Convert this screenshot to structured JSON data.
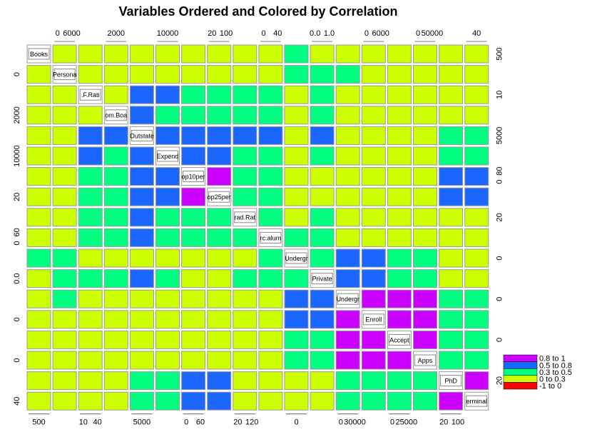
{
  "chart_data": {
    "type": "scatter-matrix",
    "title": "Variables Ordered and Colored by Correlation",
    "variables": [
      {
        "label": "Books",
        "col_ticks": [
          500
        ],
        "row_ticks": [
          500
        ]
      },
      {
        "label": "Persona",
        "col_ticks": [
          0,
          6000
        ],
        "row_ticks": [
          0
        ]
      },
      {
        "label": ".F.Rati",
        "col_ticks": [
          10,
          40
        ],
        "row_ticks": [
          10
        ]
      },
      {
        "label": "om.Boa",
        "col_ticks": [
          2000
        ],
        "row_ticks": [
          2000
        ]
      },
      {
        "label": "Outstate",
        "col_ticks": [
          5000
        ],
        "row_ticks": [
          5000
        ]
      },
      {
        "label": "Expend",
        "col_ticks": [
          10000
        ],
        "row_ticks": [
          10000
        ]
      },
      {
        "label": "op10per",
        "col_ticks": [
          0,
          60
        ],
        "row_ticks": [
          0,
          80
        ]
      },
      {
        "label": "op25per",
        "col_ticks": [
          20,
          100
        ],
        "row_ticks": [
          20
        ]
      },
      {
        "label": "rad.Rat",
        "col_ticks": [
          20,
          120
        ],
        "row_ticks": [
          20
        ]
      },
      {
        "label": "rc.alum",
        "col_ticks": [
          0,
          40
        ],
        "row_ticks": [
          0,
          60
        ]
      },
      {
        "label": "Undergr",
        "col_ticks": [
          0
        ],
        "row_ticks": [
          0
        ]
      },
      {
        "label": "Private",
        "col_ticks": [
          {
            "value": 0,
            "label": "0.0"
          },
          {
            "value": 1,
            "label": "1.0"
          }
        ],
        "row_ticks": [
          {
            "value": 0,
            "label": "0.0"
          }
        ]
      },
      {
        "label": "Undergr",
        "col_ticks": [
          0,
          30000
        ],
        "row_ticks": [
          0
        ]
      },
      {
        "label": "Enroll",
        "col_ticks": [
          0,
          6000
        ],
        "row_ticks": [
          0
        ]
      },
      {
        "label": "Accept",
        "col_ticks": [
          0,
          25000
        ],
        "row_ticks": [
          0
        ]
      },
      {
        "label": "Apps",
        "col_ticks": [
          0,
          50000
        ],
        "row_ticks": [
          0
        ]
      },
      {
        "label": "PhD",
        "col_ticks": [
          20,
          100
        ],
        "row_ticks": [
          20
        ]
      },
      {
        "label": "erminal",
        "col_ticks": [
          40
        ],
        "row_ticks": [
          40
        ]
      }
    ],
    "legend": [
      {
        "label": "0.8 to 1",
        "color": "#cc00ff"
      },
      {
        "label": "0.5 to 0.8",
        "color": "#1a66ff"
      },
      {
        "label": "0.3 to 0.5",
        "color": "#00ff80"
      },
      {
        "label": "0 to 0.3",
        "color": "#ccff00"
      },
      {
        "label": "-1 to 0",
        "color": "#ff0000"
      }
    ],
    "panel_levels": [
      [
        null,
        3,
        3,
        3,
        3,
        3,
        3,
        3,
        3,
        3,
        2,
        3,
        3,
        3,
        3,
        3,
        3,
        3
      ],
      [
        3,
        null,
        3,
        3,
        3,
        3,
        3,
        3,
        3,
        3,
        2,
        2,
        2,
        3,
        3,
        3,
        3,
        3
      ],
      [
        3,
        3,
        null,
        3,
        1,
        1,
        2,
        2,
        2,
        2,
        3,
        2,
        3,
        3,
        3,
        3,
        3,
        3
      ],
      [
        3,
        3,
        3,
        null,
        1,
        2,
        2,
        2,
        2,
        2,
        3,
        2,
        3,
        3,
        3,
        3,
        3,
        3
      ],
      [
        3,
        3,
        1,
        1,
        null,
        1,
        1,
        1,
        1,
        1,
        3,
        1,
        3,
        3,
        3,
        3,
        2,
        2
      ],
      [
        3,
        3,
        1,
        2,
        1,
        null,
        1,
        1,
        2,
        2,
        3,
        2,
        3,
        3,
        3,
        3,
        2,
        2
      ],
      [
        3,
        3,
        2,
        2,
        1,
        1,
        null,
        0,
        2,
        2,
        3,
        3,
        3,
        3,
        3,
        3,
        1,
        1
      ],
      [
        3,
        3,
        2,
        2,
        1,
        1,
        0,
        null,
        2,
        2,
        3,
        3,
        3,
        3,
        3,
        3,
        1,
        1
      ],
      [
        3,
        3,
        2,
        2,
        1,
        2,
        2,
        2,
        null,
        2,
        3,
        2,
        3,
        3,
        3,
        3,
        3,
        3
      ],
      [
        3,
        3,
        2,
        2,
        1,
        2,
        2,
        2,
        2,
        null,
        2,
        2,
        3,
        3,
        3,
        3,
        3,
        3
      ],
      [
        2,
        2,
        3,
        3,
        3,
        3,
        3,
        3,
        3,
        2,
        null,
        2,
        1,
        1,
        2,
        2,
        3,
        3
      ],
      [
        3,
        2,
        2,
        2,
        1,
        2,
        3,
        3,
        2,
        2,
        2,
        null,
        1,
        1,
        2,
        2,
        3,
        3
      ],
      [
        3,
        2,
        3,
        3,
        3,
        3,
        3,
        3,
        3,
        3,
        1,
        1,
        null,
        0,
        0,
        0,
        2,
        2
      ],
      [
        3,
        3,
        3,
        3,
        3,
        3,
        3,
        3,
        3,
        3,
        1,
        1,
        0,
        null,
        0,
        0,
        2,
        2
      ],
      [
        3,
        3,
        3,
        3,
        3,
        3,
        3,
        3,
        3,
        3,
        2,
        2,
        0,
        0,
        null,
        0,
        2,
        2
      ],
      [
        3,
        3,
        3,
        3,
        3,
        3,
        3,
        3,
        3,
        3,
        2,
        2,
        0,
        0,
        0,
        null,
        2,
        2
      ],
      [
        3,
        3,
        3,
        3,
        2,
        2,
        1,
        1,
        3,
        3,
        3,
        3,
        2,
        2,
        2,
        2,
        null,
        0
      ],
      [
        3,
        3,
        3,
        3,
        2,
        2,
        1,
        1,
        3,
        3,
        3,
        3,
        2,
        2,
        2,
        2,
        0,
        null
      ]
    ]
  }
}
